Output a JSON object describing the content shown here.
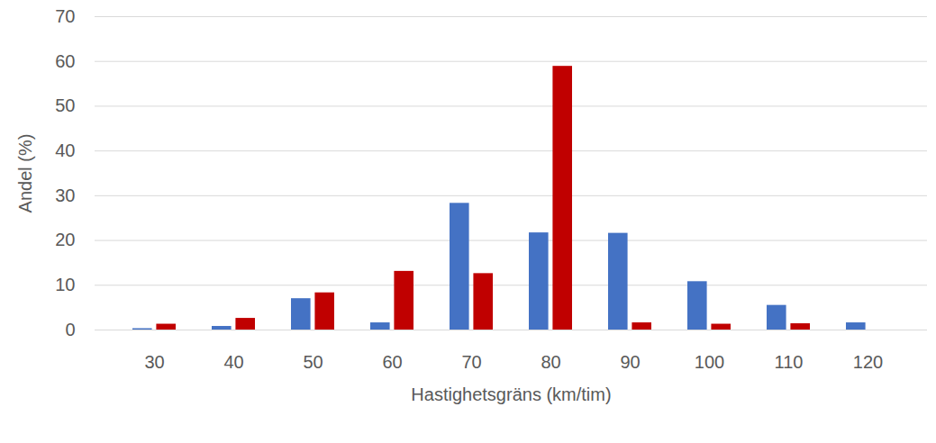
{
  "chart_data": {
    "type": "bar",
    "x_label": "Hastighetsgräns (km/tim)",
    "y_label": "Andel (%)",
    "categories": [
      30,
      40,
      50,
      60,
      70,
      80,
      90,
      100,
      110,
      120
    ],
    "series": [
      {
        "color": "#4472c4",
        "values": [
          0.3,
          0.8,
          7.0,
          1.6,
          28.3,
          21.7,
          21.6,
          10.8,
          5.5,
          1.6
        ]
      },
      {
        "color": "#c00000",
        "values": [
          1.3,
          2.6,
          8.3,
          13.1,
          12.6,
          58.9,
          1.6,
          1.3,
          1.4,
          0
        ]
      }
    ],
    "ylim": [
      0,
      70
    ],
    "yticks": [
      0,
      10,
      20,
      30,
      40,
      50,
      60,
      70
    ],
    "grid": true
  }
}
